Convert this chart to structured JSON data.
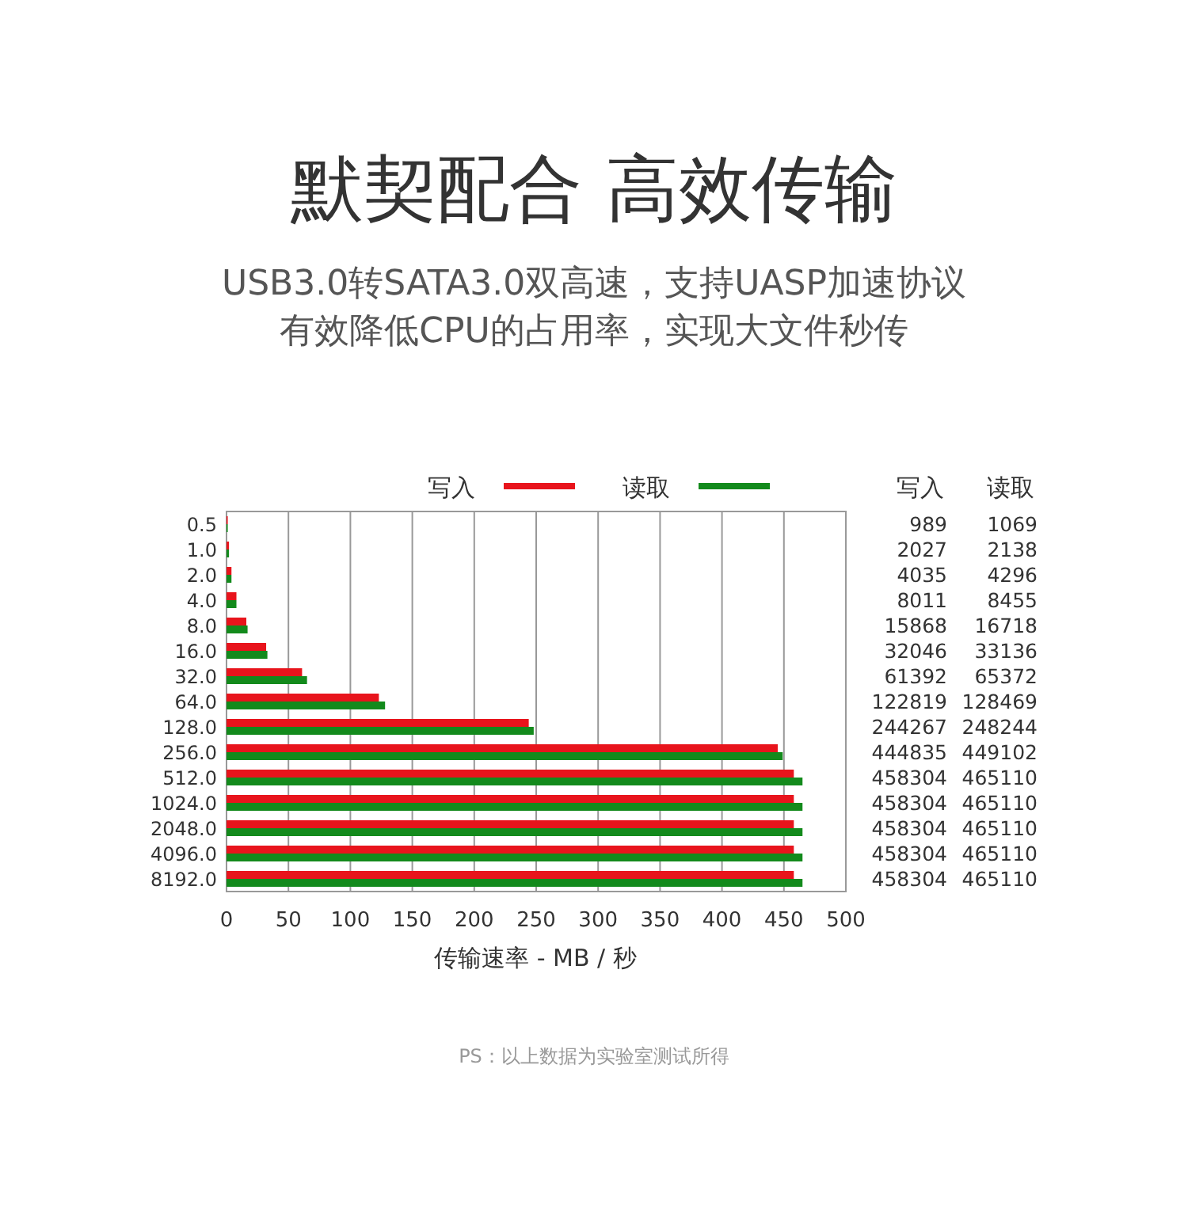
{
  "chart_data": [
    {
      "type": "bar",
      "orientation": "horizontal",
      "title": "默契配合 高效传输",
      "subtitle": "USB3.0转SATA3.0双高速，支持UASP加速协议有效降低CPU的占用率，实现大文件秒传",
      "categories": [
        "0.5",
        "1.0",
        "2.0",
        "4.0",
        "8.0",
        "16.0",
        "32.0",
        "64.0",
        "128.0",
        "256.0",
        "512.0",
        "1024.0",
        "2048.0",
        "4096.0",
        "8192.0"
      ],
      "series": [
        {
          "name": "写入",
          "color": "#e8141c",
          "values": [
            1,
            2,
            4,
            8,
            16,
            32,
            61,
            123,
            244,
            445,
            458,
            458,
            458,
            458,
            458
          ]
        },
        {
          "name": "读取",
          "color": "#138a1c",
          "values": [
            1,
            2,
            4,
            8,
            17,
            33,
            65,
            128,
            248,
            449,
            465,
            465,
            465,
            465,
            465
          ]
        }
      ],
      "xlim": [
        0,
        500
      ],
      "xticks": [
        0,
        50,
        100,
        150,
        200,
        250,
        300,
        350,
        400,
        450,
        500
      ],
      "xlabel": "传输速率 - MB / 秒",
      "grid": "x",
      "legend": "top",
      "annotations": [
        "PS：以上数据为实验室测试所得"
      ]
    },
    {
      "type": "other",
      "annotations": [
        "写入",
        "读取",
        "989",
        "1069",
        "2027",
        "2138",
        "4035",
        "4296",
        "8011",
        "8455",
        "15868",
        "16718",
        "32046",
        "33136",
        "61392",
        "65372",
        "122819",
        "128469",
        "244267",
        "248244",
        "444835",
        "449102",
        "458304",
        "465110",
        "458304",
        "465110",
        "458304",
        "465110",
        "458304",
        "465110",
        "458304",
        "465110"
      ]
    }
  ]
}
